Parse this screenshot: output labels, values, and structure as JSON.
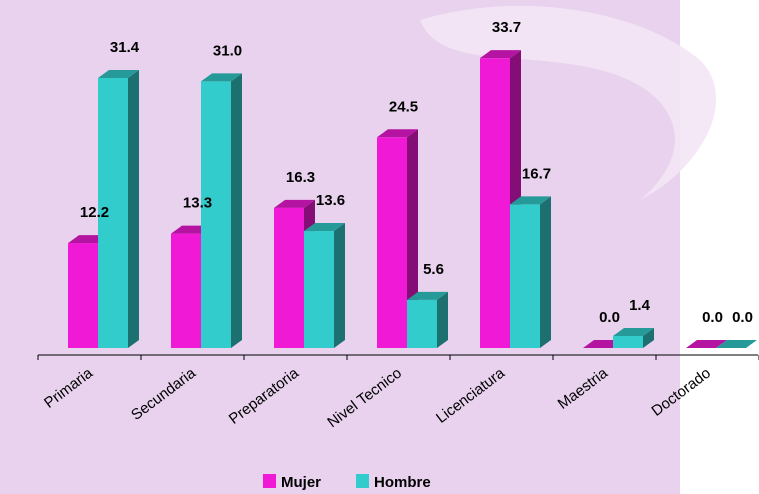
{
  "colors": {
    "background": "#e8d2ee",
    "mujer": "#f01ad6",
    "hombre": "#33cccc"
  },
  "chart_data": {
    "type": "bar",
    "title": "",
    "xlabel": "",
    "ylabel": "",
    "ylim": [
      0,
      35
    ],
    "grid": false,
    "legend_position": "bottom",
    "categories": [
      "Primaria",
      "Secundaria",
      "Preparatoria",
      "Nivel Tecnico",
      "Licenciatura",
      "Maestria",
      "Doctorado"
    ],
    "series": [
      {
        "name": "Mujer",
        "values": [
          12.2,
          13.3,
          16.3,
          24.5,
          33.7,
          0.0,
          0.0
        ],
        "labels": [
          "12.2",
          "13.3",
          "16.3",
          "24.5",
          "33.7",
          "0.0",
          "0.0"
        ]
      },
      {
        "name": "Hombre",
        "values": [
          31.4,
          31.0,
          13.6,
          5.6,
          16.7,
          1.4,
          0.0
        ],
        "labels": [
          "31.4",
          "31.0",
          "13.6",
          "5.6",
          "16.7",
          "1.4",
          "0.0"
        ]
      }
    ]
  }
}
